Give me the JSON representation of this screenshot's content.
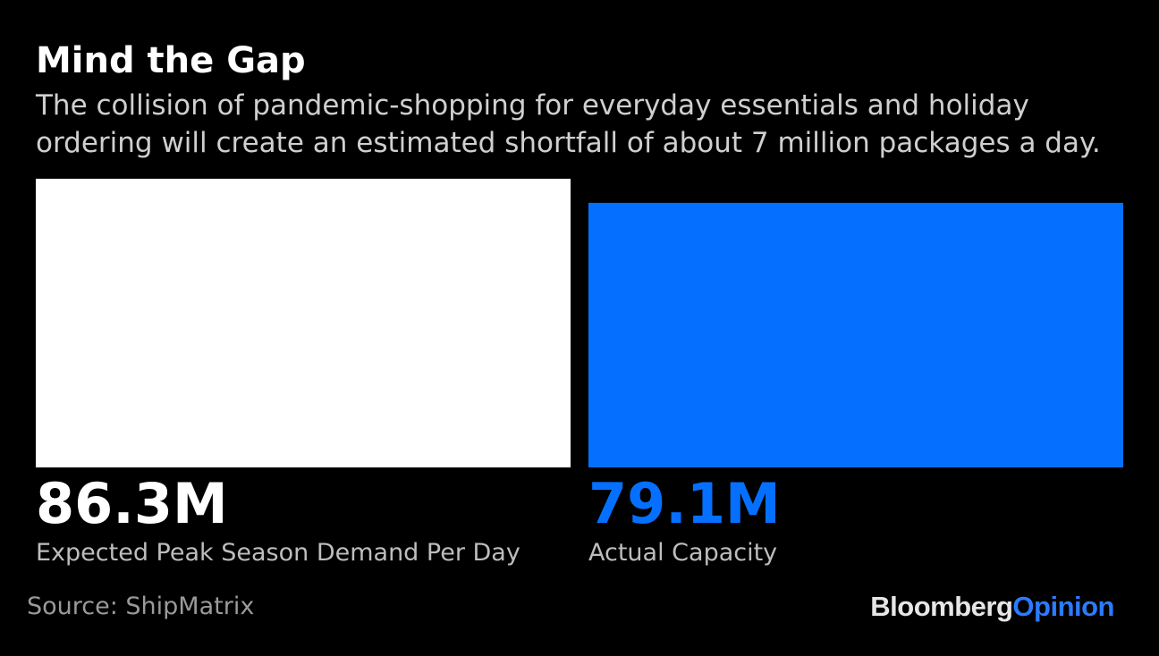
{
  "colors": {
    "background": "#000000",
    "demand_bar": "#ffffff",
    "capacity_bar": "#0570ff",
    "label_text": "#bdbdbd",
    "source_text": "#9a9a9a"
  },
  "chart_data": {
    "type": "bar",
    "title": "Mind the Gap",
    "subtitle": "The collision of pandemic-shopping for everyday essentials and holiday ordering will create an estimated shortfall of about 7 million packages a day.",
    "categories": [
      "Expected Peak Season Demand Per Day",
      "Actual Capacity"
    ],
    "values": [
      86.3,
      79.1
    ],
    "value_labels": [
      "86.3M",
      "79.1M"
    ],
    "unit": "M",
    "ylim": [
      0,
      86.3
    ],
    "grid": false,
    "source": "Source: ShipMatrix"
  },
  "branding": {
    "name_part1": "Bloomberg",
    "name_part2": "Opinion"
  }
}
